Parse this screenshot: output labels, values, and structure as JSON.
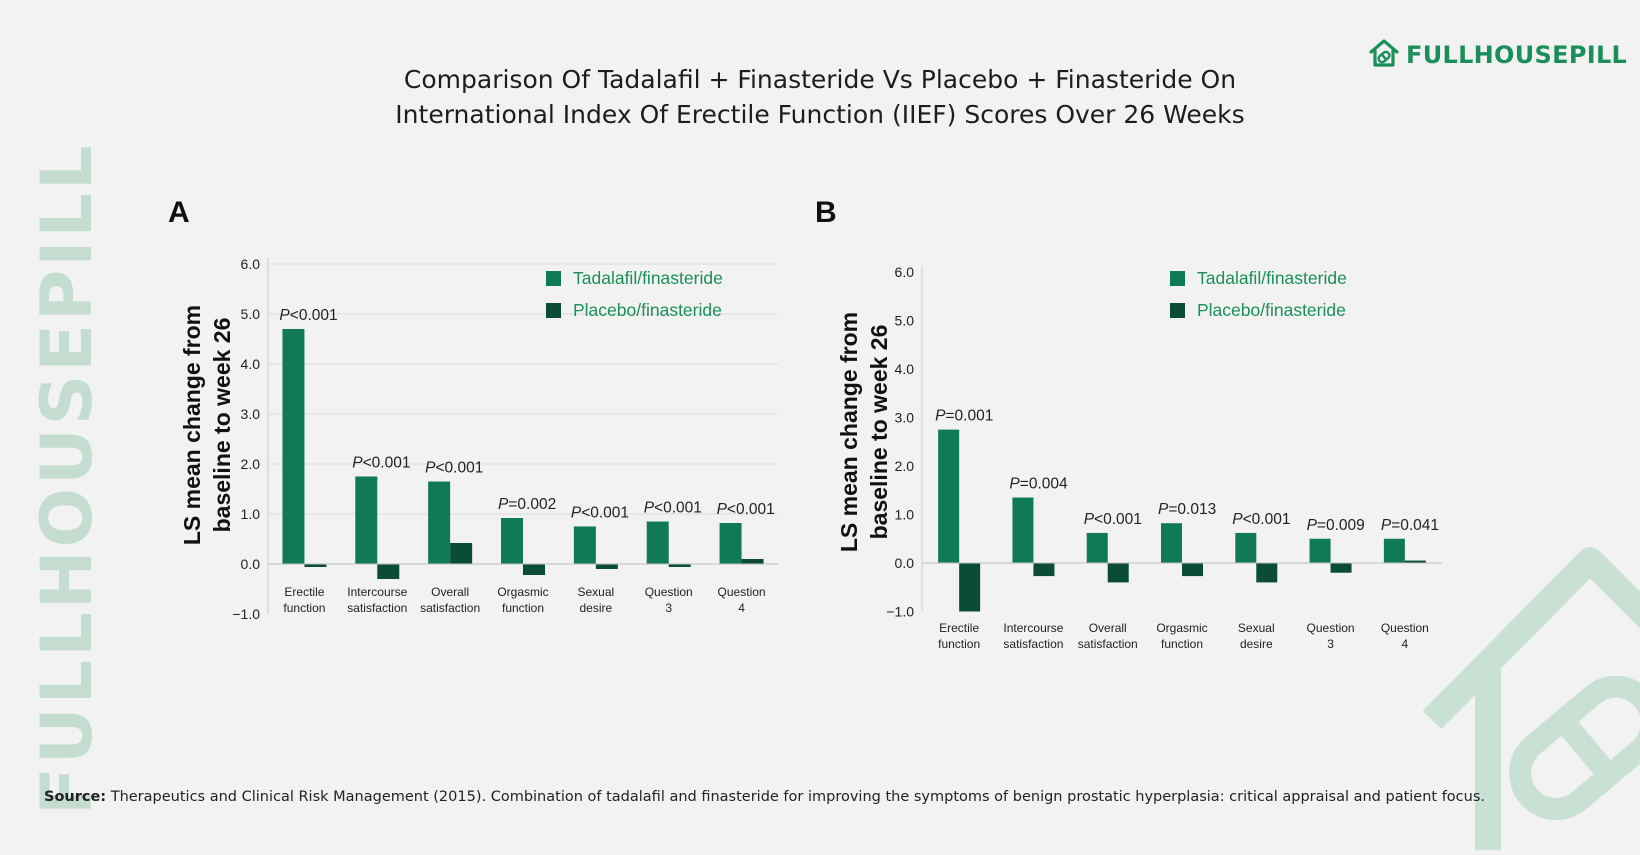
{
  "title_lines": [
    "Comparison Of Tadalafil + Finasteride Vs Placebo + Finasteride On",
    "International Index Of Erectile Function (IIEF) Scores Over 26 Weeks"
  ],
  "brand": {
    "name": "FULLHOUSEPILL",
    "icon": "house-pill-logo-icon"
  },
  "watermark": "FULLHOUSEPILL",
  "source": {
    "label": "Source:",
    "text": "Therapeutics and Clinical Risk Management (2015). Combination of tadalafil and finasteride for improving the symptoms of benign prostatic hyperplasia: critical appraisal and patient focus."
  },
  "colors": {
    "tadalafil": "#0f7a53",
    "placebo": "#0a4d34",
    "legend_text": "#1b8f5a"
  },
  "chart_data": [
    {
      "type": "bar",
      "panel_label": "A",
      "ylabel": [
        "LS mean change from",
        "baseline to week 26"
      ],
      "ylim": [
        -1.0,
        6.0
      ],
      "yticks": [
        "6.0",
        "5.0",
        "4.0",
        "3.0",
        "2.0",
        "1.0",
        "0.0",
        "−1.0"
      ],
      "categories": [
        [
          "Erectile",
          "function"
        ],
        [
          "Intercourse",
          "satisfaction"
        ],
        [
          "Overall",
          "satisfaction"
        ],
        [
          "Orgasmic",
          "function"
        ],
        [
          "Sexual",
          "desire"
        ],
        [
          "Question",
          "3"
        ],
        [
          "Question",
          "4"
        ]
      ],
      "series": [
        {
          "name": "Tadalafil/finasteride",
          "values": [
            4.7,
            1.75,
            1.65,
            0.92,
            0.75,
            0.85,
            0.82
          ]
        },
        {
          "name": "Placebo/finasteride",
          "values": [
            -0.06,
            -0.3,
            0.42,
            -0.22,
            -0.1,
            -0.06,
            0.1
          ]
        }
      ],
      "annotations": [
        {
          "prefix": "P",
          "text": "<0.001"
        },
        {
          "prefix": "P",
          "text": "<0.001"
        },
        {
          "prefix": "P",
          "text": "<0.001"
        },
        {
          "prefix": "P",
          "text": "=0.002"
        },
        {
          "prefix": "P",
          "text": "<0.001"
        },
        {
          "prefix": "P",
          "text": "<0.001"
        },
        {
          "prefix": "P",
          "text": "<0.001"
        }
      ],
      "grid": true,
      "legend_position": "top-right"
    },
    {
      "type": "bar",
      "panel_label": "B",
      "ylabel": [
        "LS mean change from",
        "baseline to week 26"
      ],
      "ylim": [
        -1.0,
        6.0
      ],
      "yticks": [
        "6.0",
        "5.0",
        "4.0",
        "3.0",
        "2.0",
        "1.0",
        "0.0",
        "−1.0"
      ],
      "categories": [
        [
          "Erectile",
          "function"
        ],
        [
          "Intercourse",
          "satisfaction"
        ],
        [
          "Overall",
          "satisfaction"
        ],
        [
          "Orgasmic",
          "function"
        ],
        [
          "Sexual",
          "desire"
        ],
        [
          "Question",
          "3"
        ],
        [
          "Question",
          "4"
        ]
      ],
      "series": [
        {
          "name": "Tadalafil/finasteride",
          "values": [
            2.75,
            1.35,
            0.62,
            0.82,
            0.62,
            0.5,
            0.5
          ]
        },
        {
          "name": "Placebo/finasteride",
          "values": [
            -1.0,
            -0.27,
            -0.4,
            -0.27,
            -0.4,
            -0.2,
            0.05
          ]
        }
      ],
      "annotations": [
        {
          "prefix": "P",
          "text": "=0.001"
        },
        {
          "prefix": "P",
          "text": "=0.004"
        },
        {
          "prefix": "P",
          "text": "<0.001"
        },
        {
          "prefix": "P",
          "text": "=0.013"
        },
        {
          "prefix": "P",
          "text": "<0.001"
        },
        {
          "prefix": "P",
          "text": "=0.009"
        },
        {
          "prefix": "P",
          "text": "=0.041"
        }
      ],
      "grid": false,
      "legend_position": "top-right"
    }
  ]
}
